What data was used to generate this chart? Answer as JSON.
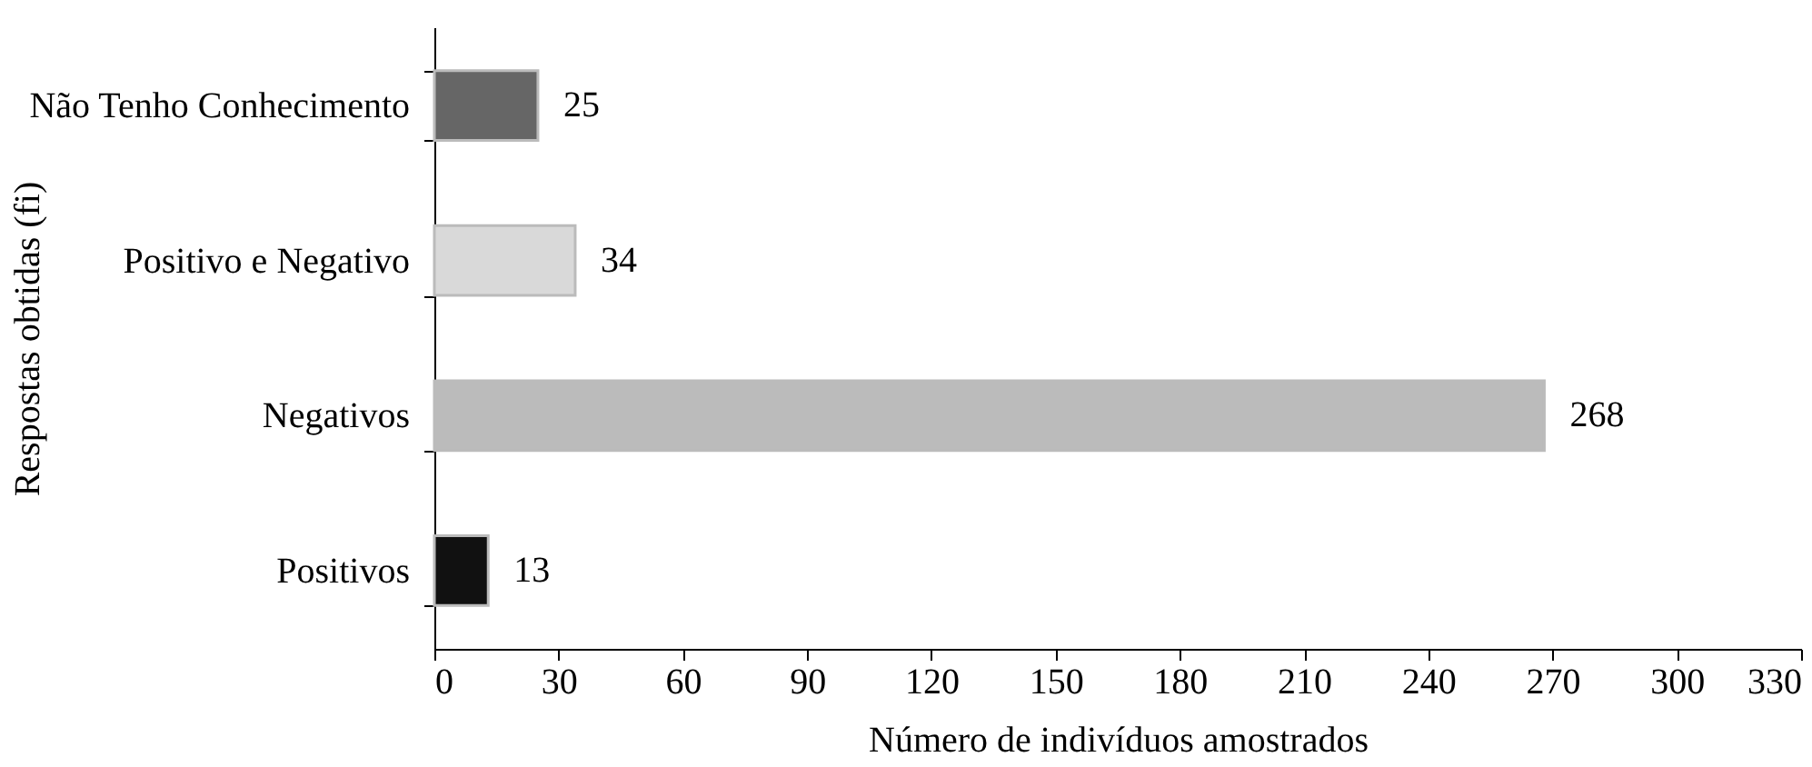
{
  "chart_data": {
    "type": "bar",
    "orientation": "horizontal",
    "categories": [
      "Não Tenho Conhecimento",
      "Positivo e Negativo",
      "Negativos",
      "Positivos"
    ],
    "values": [
      25,
      34,
      268,
      13
    ],
    "colors": [
      "#666666",
      "#d9d9d9",
      "#bbbbbb",
      "#111111"
    ],
    "xlim": [
      0,
      330
    ],
    "xticks": [
      0,
      30,
      60,
      90,
      120,
      150,
      180,
      210,
      240,
      270,
      300,
      330
    ],
    "xlabel": "Número de indivíduos amostrados",
    "ylabel": "Respostas obtidas (fi)",
    "data_labels": true,
    "grid": false
  }
}
